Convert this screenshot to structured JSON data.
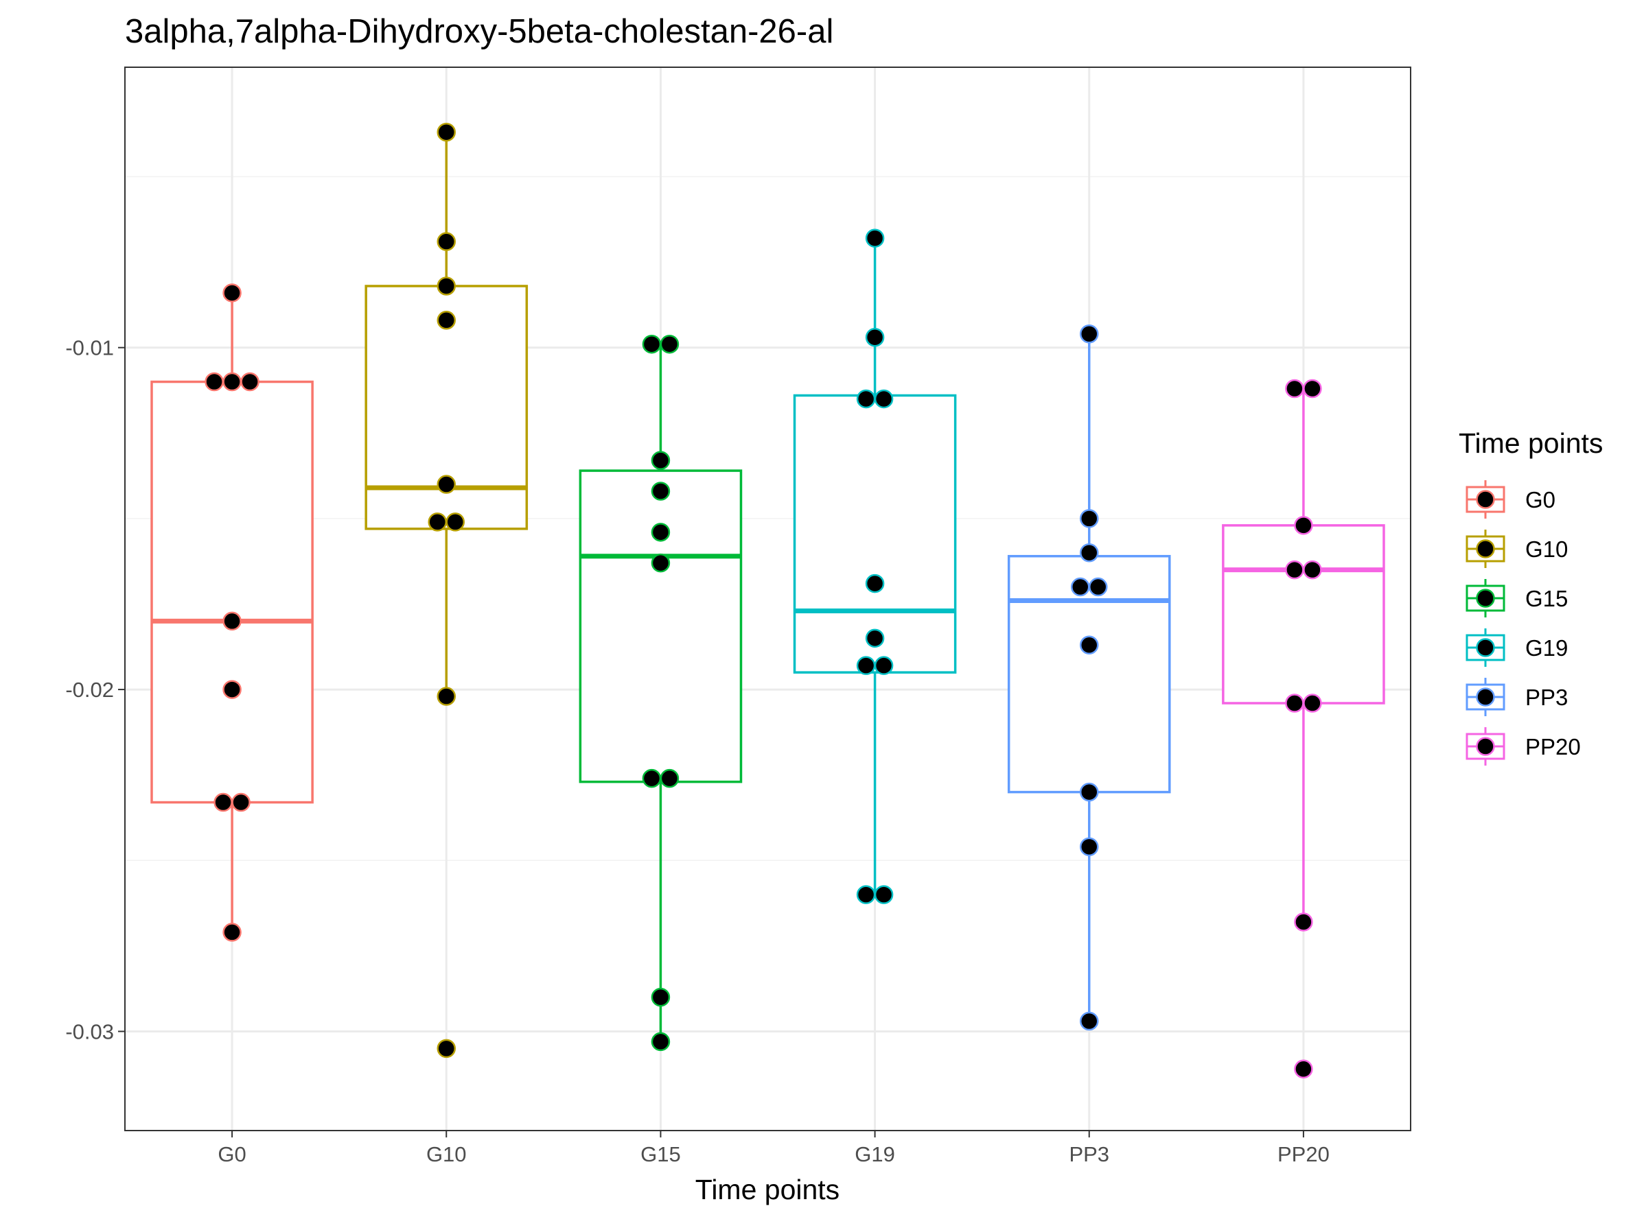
{
  "chart_data": {
    "type": "box",
    "title": "3alpha,7alpha-Dihydroxy-5beta-cholestan-26-al",
    "xlabel": "Time points",
    "ylabel": "",
    "ylim": [
      -0.0329,
      -0.0018
    ],
    "yticks": [
      -0.01,
      -0.02,
      -0.03
    ],
    "ytick_labels": [
      "-0.01",
      "-0.02",
      "-0.03"
    ],
    "grid": true,
    "legend": {
      "title": "Time points",
      "position": "right"
    },
    "categories": [
      "G0",
      "G10",
      "G15",
      "G19",
      "PP3",
      "PP20"
    ],
    "colors": [
      "#F8766D",
      "#B79F00",
      "#00BA38",
      "#00BFC4",
      "#619CFF",
      "#F564E3"
    ],
    "boxes": [
      {
        "q1": -0.0233,
        "median": -0.018,
        "q3": -0.011,
        "whisker_low": -0.0271,
        "whisker_high": -0.0084
      },
      {
        "q1": -0.0153,
        "median": -0.0141,
        "q3": -0.0082,
        "whisker_low": -0.0202,
        "whisker_high": -0.0037
      },
      {
        "q1": -0.0227,
        "median": -0.0161,
        "q3": -0.0136,
        "whisker_low": -0.0303,
        "whisker_high": -0.0099
      },
      {
        "q1": -0.0195,
        "median": -0.0177,
        "q3": -0.0114,
        "whisker_low": -0.026,
        "whisker_high": -0.0068
      },
      {
        "q1": -0.023,
        "median": -0.0174,
        "q3": -0.0161,
        "whisker_low": -0.0297,
        "whisker_high": -0.0096
      },
      {
        "q1": -0.0204,
        "median": -0.0165,
        "q3": -0.0152,
        "whisker_low": -0.0268,
        "whisker_high": -0.0112
      }
    ],
    "points": [
      [
        -0.0084,
        -0.011,
        -0.011,
        -0.011,
        -0.018,
        -0.02,
        -0.0233,
        -0.0233,
        -0.0271
      ],
      [
        -0.0037,
        -0.0069,
        -0.0082,
        -0.0092,
        -0.014,
        -0.0151,
        -0.0151,
        -0.0202,
        -0.0305
      ],
      [
        -0.0099,
        -0.0099,
        -0.0133,
        -0.0142,
        -0.0154,
        -0.0163,
        -0.0226,
        -0.0226,
        -0.029,
        -0.0303
      ],
      [
        -0.0068,
        -0.0097,
        -0.0115,
        -0.0115,
        -0.0169,
        -0.0185,
        -0.0193,
        -0.0193,
        -0.026,
        -0.026
      ],
      [
        -0.0096,
        -0.015,
        -0.016,
        -0.017,
        -0.017,
        -0.0187,
        -0.023,
        -0.0246,
        -0.0297
      ],
      [
        -0.0112,
        -0.0112,
        -0.0152,
        -0.0165,
        -0.0165,
        -0.0204,
        -0.0204,
        -0.0268,
        -0.0311
      ]
    ]
  }
}
